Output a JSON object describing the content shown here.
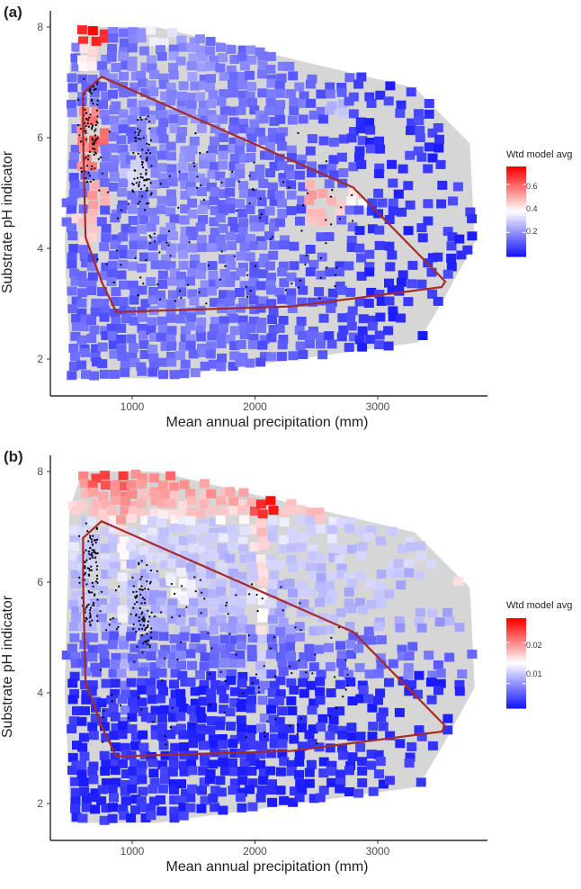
{
  "panels": [
    {
      "tag": "(a)",
      "xlabel": "Mean annual precipitation (mm)",
      "ylabel": "Substrate pH indicator",
      "legend_title": "Wtd model avg",
      "legend_labels": [
        "0.6",
        "0.4",
        "0.2"
      ]
    },
    {
      "tag": "(b)",
      "xlabel": "Mean annual precipitation (mm)",
      "ylabel": "Substrate pH indicator",
      "legend_title": "Wtd model avg",
      "legend_labels": [
        "0.02",
        "0.01"
      ]
    }
  ],
  "chart_data": [
    {
      "type": "heatmap",
      "title": "(a)",
      "xlabel": "Mean annual precipitation (mm)",
      "ylabel": "Substrate pH indicator",
      "xticks": [
        1000,
        2000,
        3000
      ],
      "yticks": [
        2,
        4,
        6,
        8
      ],
      "xlim": [
        450,
        3850
      ],
      "ylim": [
        1.6,
        8.2
      ],
      "grid": false,
      "legend_position": "right",
      "legend": {
        "title": "Wtd model avg",
        "ticks": [
          0.2,
          0.4,
          0.6
        ],
        "range": [
          0.0,
          0.75
        ],
        "colors": {
          "low": "#1a1aff",
          "mid": "#ffffff",
          "high": "#ff0000"
        }
      },
      "background_hull": [
        [
          590,
          8.0
        ],
        [
          1200,
          8.0
        ],
        [
          3300,
          6.9
        ],
        [
          3750,
          5.9
        ],
        [
          3790,
          4.1
        ],
        [
          3530,
          3.05
        ],
        [
          3330,
          2.3
        ],
        [
          1200,
          1.65
        ],
        [
          500,
          1.65
        ],
        [
          450,
          4.0
        ],
        [
          490,
          7.3
        ]
      ],
      "occurrence_hull": [
        [
          600,
          6.8
        ],
        [
          750,
          7.1
        ],
        [
          2800,
          5.1
        ],
        [
          3550,
          3.4
        ],
        [
          3520,
          3.3
        ],
        [
          2300,
          2.95
        ],
        [
          870,
          2.85
        ],
        [
          750,
          3.4
        ],
        [
          620,
          4.2
        ],
        [
          600,
          6.0
        ]
      ],
      "hot_spots": [
        [
          640,
          8.0,
          0.75
        ],
        [
          610,
          6.4,
          0.6
        ],
        [
          650,
          6.1,
          0.65
        ],
        [
          640,
          5.7,
          0.6
        ],
        [
          660,
          5.0,
          0.55
        ],
        [
          600,
          4.5,
          0.5
        ],
        [
          620,
          7.6,
          0.45
        ],
        [
          2450,
          5.0,
          0.55
        ],
        [
          2480,
          4.65,
          0.5
        ],
        [
          2600,
          4.9,
          0.5
        ],
        [
          2800,
          5.15,
          0.45
        ],
        [
          1000,
          5.4,
          0.35
        ],
        [
          3150,
          7.4,
          0.3
        ],
        [
          1180,
          8.0,
          0.4
        ],
        [
          2650,
          6.5,
          0.3
        ]
      ],
      "sample_points_region": [
        [
          560,
          7.0
        ],
        [
          720,
          5.2
        ],
        [
          1100,
          6.4
        ],
        [
          2800,
          3.2
        ]
      ]
    },
    {
      "type": "heatmap",
      "title": "(b)",
      "xlabel": "Mean annual precipitation (mm)",
      "ylabel": "Substrate pH indicator",
      "xticks": [
        1000,
        2000,
        3000
      ],
      "yticks": [
        2,
        4,
        6,
        8
      ],
      "xlim": [
        450,
        3850
      ],
      "ylim": [
        1.6,
        8.2
      ],
      "grid": false,
      "legend_position": "right",
      "legend": {
        "title": "Wtd model avg",
        "ticks": [
          0.01,
          0.02
        ],
        "range": [
          0.004,
          0.026
        ],
        "colors": {
          "low": "#1a1aff",
          "mid": "#ffffff",
          "high": "#ff0000"
        }
      },
      "background_hull": [
        [
          590,
          8.0
        ],
        [
          1200,
          8.0
        ],
        [
          3300,
          6.9
        ],
        [
          3750,
          5.9
        ],
        [
          3790,
          4.1
        ],
        [
          3530,
          3.05
        ],
        [
          3330,
          2.3
        ],
        [
          1200,
          1.65
        ],
        [
          500,
          1.65
        ],
        [
          450,
          4.0
        ],
        [
          490,
          7.3
        ]
      ],
      "occurrence_hull": [
        [
          600,
          6.8
        ],
        [
          750,
          7.1
        ],
        [
          2800,
          5.1
        ],
        [
          3550,
          3.4
        ],
        [
          3520,
          3.3
        ],
        [
          2300,
          2.95
        ],
        [
          870,
          2.85
        ],
        [
          750,
          3.4
        ],
        [
          620,
          4.2
        ],
        [
          600,
          6.0
        ]
      ],
      "hot_spots": [
        [
          2100,
          7.5,
          0.026
        ],
        [
          700,
          8.0,
          0.024
        ],
        [
          1000,
          8.0,
          0.02
        ],
        [
          3700,
          6.1,
          0.018
        ],
        [
          3750,
          3.8,
          0.017
        ],
        [
          3700,
          3.25,
          0.019
        ],
        [
          1350,
          6.0,
          0.016
        ],
        [
          2000,
          5.8,
          0.015
        ]
      ],
      "sample_points_region": [
        [
          560,
          7.0
        ],
        [
          720,
          5.2
        ],
        [
          1100,
          6.4
        ],
        [
          2800,
          3.2
        ]
      ]
    }
  ]
}
